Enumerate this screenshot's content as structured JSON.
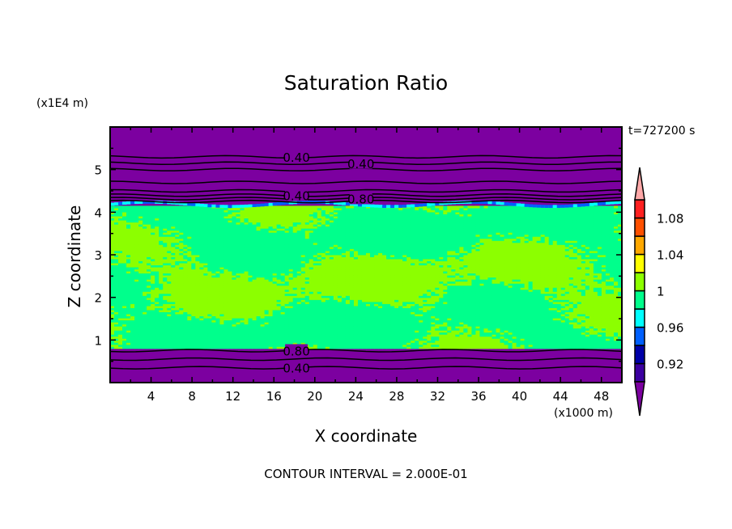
{
  "chart_data": {
    "type": "heatmap",
    "title": "Saturation Ratio",
    "xlabel": "X coordinate",
    "ylabel": "Z coordinate",
    "x_unit_label": "(x1000 m)",
    "y_unit_label": "(x1E4 m)",
    "time_label": "t=727200 s",
    "footer": "CONTOUR INTERVAL = 2.000E-01",
    "xlim": [
      0,
      50
    ],
    "ylim": [
      0,
      6
    ],
    "xticks": [
      "4",
      "8",
      "12",
      "16",
      "20",
      "24",
      "28",
      "32",
      "36",
      "40",
      "44",
      "48"
    ],
    "yticks": [
      "1",
      "2",
      "3",
      "4",
      "5"
    ],
    "contour_labels": [
      "0.40",
      "0.40",
      "0.40",
      "0.80",
      "0.80",
      "0.40"
    ],
    "colorbar": {
      "levels": [
        0.9,
        0.92,
        0.94,
        0.96,
        0.98,
        1.0,
        1.02,
        1.04,
        1.06,
        1.08,
        1.1
      ],
      "tick_labels": [
        "0.92",
        "0.96",
        "1",
        "1.04",
        "1.08"
      ],
      "colors": [
        "#3c00a0",
        "#0000a8",
        "#0060ff",
        "#00ffff",
        "#00ff8c",
        "#8cff00",
        "#ffff00",
        "#ffa800",
        "#ff5000",
        "#ff2020"
      ],
      "under_color": "#7c00a0",
      "over_color": "#ffa8a8"
    },
    "regions": [
      {
        "z_range": [
          0,
          0.8
        ],
        "description_value": "below 0.90"
      },
      {
        "z_range": [
          0.8,
          4.15
        ],
        "values_between": [
          0.98,
          1.02
        ]
      },
      {
        "z_range": [
          4.15,
          4.25
        ],
        "values_between": [
          0.92,
          0.98
        ]
      },
      {
        "z_range": [
          4.25,
          6
        ],
        "description_value": "below 0.90"
      }
    ]
  }
}
